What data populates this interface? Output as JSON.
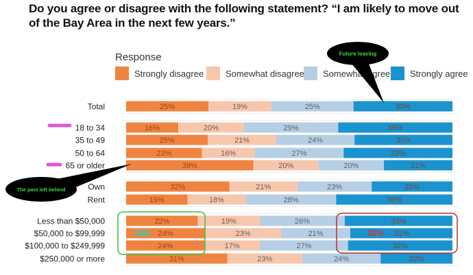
{
  "page": {
    "title": "Do you agree or disagree with the following statement? “I am likely to move out of the Bay Area in the next few years.”"
  },
  "annotations": {
    "callout_future": "Future leaving",
    "callout_past": "The past left behind",
    "highlight_left_value": "24%",
    "highlight_right_value": "32%"
  },
  "chart_data": {
    "type": "bar",
    "orientation": "horizontal",
    "stacked": true,
    "normalized": true,
    "legend_title": "Response",
    "legend_position": "top",
    "categories": [
      "Total",
      "18 to 34",
      "35 to 49",
      "50 to 64",
      "65 or older",
      "Own",
      "Rent",
      "Less than $50,000",
      "$50,000 to $99,999",
      "$100,000 to $249,999",
      "$250,000 or more"
    ],
    "groups": [
      [
        "Total"
      ],
      [
        "18 to 34",
        "35 to 49",
        "50 to 64",
        "65 or older"
      ],
      [
        "Own",
        "Rent"
      ],
      [
        "Less than $50,000",
        "$50,000 to $99,999",
        "$100,000 to $249,999",
        "$250,000 or more"
      ]
    ],
    "series": [
      {
        "name": "Strongly disagree",
        "color": "#ef8441",
        "values": [
          25,
          16,
          25,
          23,
          39,
          32,
          19,
          22,
          24,
          24,
          31
        ]
      },
      {
        "name": "Somewhat disagree",
        "color": "#f7c7ad",
        "values": [
          19,
          20,
          21,
          16,
          20,
          21,
          18,
          19,
          23,
          17,
          23
        ]
      },
      {
        "name": "Somewhat agree",
        "color": "#b6cfe5",
        "values": [
          25,
          29,
          24,
          27,
          20,
          23,
          28,
          26,
          21,
          27,
          24
        ]
      },
      {
        "name": "Strongly agree",
        "color": "#1b93cf",
        "values": [
          30,
          35,
          30,
          33,
          21,
          25,
          36,
          33,
          31,
          32,
          22
        ]
      }
    ],
    "colors": {
      "highlight_left": "#1fd3c4",
      "highlight_right": "#d8342a",
      "box_left": "#39c23a",
      "box_right": "#b6302a",
      "marker": "#e255d8"
    }
  }
}
